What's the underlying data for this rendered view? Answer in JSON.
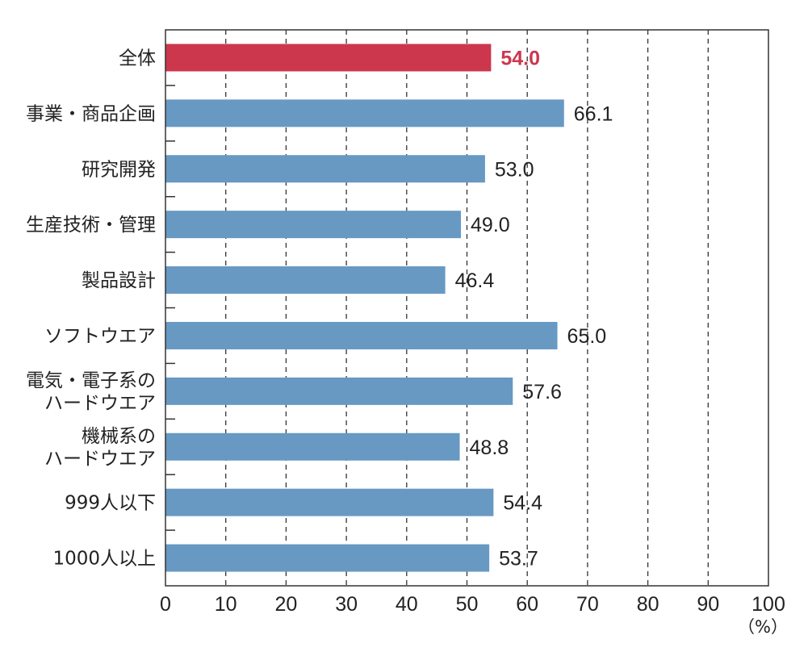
{
  "chart_data": {
    "type": "bar",
    "orientation": "horizontal",
    "title": "",
    "xlabel": "",
    "ylabel": "",
    "unit": "（%）",
    "xlim": [
      0,
      100
    ],
    "x_ticks": [
      "0",
      "10",
      "20",
      "30",
      "40",
      "50",
      "60",
      "70",
      "80",
      "90",
      "100"
    ],
    "grid": "vertical dashed",
    "categories": [
      [
        "全体"
      ],
      [
        "事業・商品企画"
      ],
      [
        "研究開発"
      ],
      [
        "生産技術・管理"
      ],
      [
        "製品設計"
      ],
      [
        "ソフトウエア"
      ],
      [
        "電気・電子系の",
        "ハードウエア"
      ],
      [
        "機械系の",
        "ハードウエア"
      ],
      [
        "999人以下"
      ],
      [
        "1000人以上"
      ]
    ],
    "values": [
      54.0,
      66.1,
      53.0,
      49.0,
      46.4,
      65.0,
      57.6,
      48.8,
      54.4,
      53.7
    ],
    "value_labels": [
      "54.0",
      "66.1",
      "53.0",
      "49.0",
      "46.4",
      "65.0",
      "57.6",
      "48.8",
      "54.4",
      "53.7"
    ],
    "highlight_index": 0,
    "colors": {
      "highlight": "#cc374e",
      "bar": "#6799c3",
      "highlight_label": "#cc374e",
      "label": "#222222",
      "axis": "#333333",
      "grid": "#333333"
    }
  }
}
